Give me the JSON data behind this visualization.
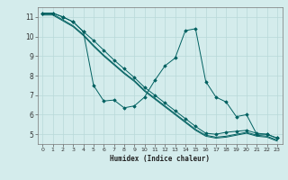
{
  "xlabel": "Humidex (Indice chaleur)",
  "bg_color": "#d4ecec",
  "grid_color": "#b8d8d8",
  "line_color": "#006060",
  "xlim": [
    -0.5,
    23.5
  ],
  "ylim": [
    4.5,
    11.5
  ],
  "xticks": [
    0,
    1,
    2,
    3,
    4,
    5,
    6,
    7,
    8,
    9,
    10,
    11,
    12,
    13,
    14,
    15,
    16,
    17,
    18,
    19,
    20,
    21,
    22,
    23
  ],
  "yticks": [
    5,
    6,
    7,
    8,
    9,
    10,
    11
  ],
  "series1": [
    [
      0,
      11.2
    ],
    [
      1,
      11.2
    ],
    [
      2,
      11.0
    ],
    [
      3,
      10.75
    ],
    [
      4,
      10.25
    ],
    [
      5,
      7.5
    ],
    [
      6,
      6.7
    ],
    [
      7,
      6.75
    ],
    [
      8,
      6.35
    ],
    [
      9,
      6.45
    ],
    [
      10,
      6.9
    ],
    [
      11,
      7.75
    ],
    [
      12,
      8.5
    ],
    [
      13,
      8.9
    ],
    [
      14,
      10.3
    ],
    [
      15,
      10.4
    ],
    [
      16,
      7.7
    ],
    [
      17,
      6.9
    ],
    [
      18,
      6.65
    ],
    [
      19,
      5.9
    ],
    [
      20,
      6.0
    ],
    [
      21,
      5.0
    ],
    [
      22,
      5.0
    ],
    [
      23,
      4.8
    ]
  ],
  "series2": [
    [
      0,
      11.2
    ],
    [
      1,
      11.2
    ],
    [
      2,
      11.0
    ],
    [
      3,
      10.75
    ],
    [
      4,
      10.25
    ],
    [
      5,
      9.8
    ],
    [
      6,
      9.3
    ],
    [
      7,
      8.8
    ],
    [
      8,
      8.35
    ],
    [
      9,
      7.9
    ],
    [
      10,
      7.4
    ],
    [
      11,
      7.0
    ],
    [
      12,
      6.6
    ],
    [
      13,
      6.2
    ],
    [
      14,
      5.8
    ],
    [
      15,
      5.4
    ],
    [
      16,
      5.05
    ],
    [
      17,
      5.0
    ],
    [
      18,
      5.1
    ],
    [
      19,
      5.15
    ],
    [
      20,
      5.2
    ],
    [
      21,
      5.05
    ],
    [
      22,
      5.0
    ],
    [
      23,
      4.8
    ]
  ],
  "series3": [
    [
      0,
      11.15
    ],
    [
      1,
      11.15
    ],
    [
      2,
      10.85
    ],
    [
      3,
      10.55
    ],
    [
      4,
      10.1
    ],
    [
      5,
      9.55
    ],
    [
      6,
      9.05
    ],
    [
      7,
      8.6
    ],
    [
      8,
      8.15
    ],
    [
      9,
      7.75
    ],
    [
      10,
      7.25
    ],
    [
      11,
      6.85
    ],
    [
      12,
      6.45
    ],
    [
      13,
      6.05
    ],
    [
      14,
      5.65
    ],
    [
      15,
      5.25
    ],
    [
      16,
      4.95
    ],
    [
      17,
      4.85
    ],
    [
      18,
      4.9
    ],
    [
      19,
      5.0
    ],
    [
      20,
      5.1
    ],
    [
      21,
      4.95
    ],
    [
      22,
      4.9
    ],
    [
      23,
      4.7
    ]
  ],
  "series4": [
    [
      0,
      11.1
    ],
    [
      1,
      11.1
    ],
    [
      2,
      10.8
    ],
    [
      3,
      10.5
    ],
    [
      4,
      10.05
    ],
    [
      5,
      9.5
    ],
    [
      6,
      9.0
    ],
    [
      7,
      8.55
    ],
    [
      8,
      8.1
    ],
    [
      9,
      7.7
    ],
    [
      10,
      7.2
    ],
    [
      11,
      6.8
    ],
    [
      12,
      6.4
    ],
    [
      13,
      6.0
    ],
    [
      14,
      5.6
    ],
    [
      15,
      5.2
    ],
    [
      16,
      4.9
    ],
    [
      17,
      4.8
    ],
    [
      18,
      4.85
    ],
    [
      19,
      4.95
    ],
    [
      20,
      5.05
    ],
    [
      21,
      4.9
    ],
    [
      22,
      4.85
    ],
    [
      23,
      4.65
    ]
  ]
}
